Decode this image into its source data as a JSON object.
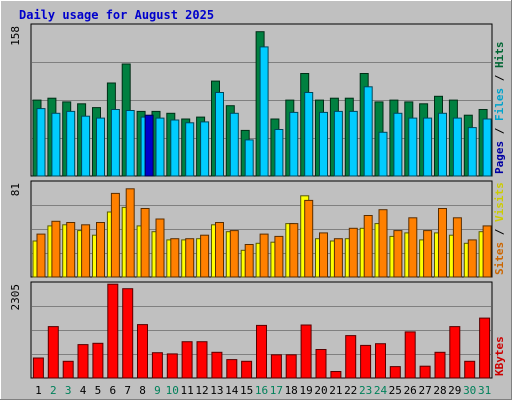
{
  "chart_data": [
    {
      "type": "bar",
      "title": "Daily usage for August 2025",
      "panel": "hits-files-pages",
      "ymax_label": "158",
      "legend": [
        {
          "name": "Pages",
          "color": "#0000CC"
        },
        {
          "name": "Files",
          "color": "#00CCFF"
        },
        {
          "name": "Hits",
          "color": "#008040"
        }
      ],
      "categories": [
        "1",
        "2",
        "3",
        "4",
        "5",
        "6",
        "7",
        "8",
        "9",
        "10",
        "11",
        "12",
        "13",
        "14",
        "15",
        "16",
        "17",
        "18",
        "19",
        "20",
        "21",
        "22",
        "23",
        "24",
        "25",
        "26",
        "27",
        "28",
        "29",
        "30",
        "31"
      ],
      "weekend_days": [
        "2",
        "3",
        "9",
        "10",
        "16",
        "17",
        "23",
        "24",
        "30",
        "31"
      ],
      "series": [
        {
          "name": "Hits",
          "values": [
            80,
            82,
            78,
            76,
            72,
            98,
            118,
            68,
            68,
            66,
            60,
            62,
            100,
            74,
            48,
            152,
            60,
            80,
            108,
            80,
            82,
            82,
            108,
            78,
            80,
            78,
            76,
            84,
            80,
            64,
            70
          ]
        },
        {
          "name": "Files",
          "values": [
            71,
            66,
            68,
            63,
            61,
            70,
            69,
            62,
            61,
            59,
            56,
            57,
            88,
            66,
            38,
            136,
            49,
            67,
            88,
            67,
            68,
            68,
            94,
            46,
            66,
            61,
            61,
            66,
            61,
            51,
            60
          ]
        },
        {
          "name": "Pages",
          "values": [
            0,
            0,
            0,
            0,
            0,
            0,
            0,
            64,
            0,
            0,
            0,
            0,
            0,
            0,
            0,
            0,
            0,
            0,
            0,
            0,
            0,
            0,
            0,
            0,
            0,
            0,
            0,
            0,
            0,
            0,
            0
          ]
        }
      ],
      "ylim": [
        0,
        158
      ]
    },
    {
      "type": "bar",
      "panel": "visits-sites",
      "ymax_label": "81",
      "legend": [
        {
          "name": "Sites",
          "color": "#FF8000"
        },
        {
          "name": "Visits",
          "color": "#FFFF00"
        }
      ],
      "categories": [
        "1",
        "2",
        "3",
        "4",
        "5",
        "6",
        "7",
        "8",
        "9",
        "10",
        "11",
        "12",
        "13",
        "14",
        "15",
        "16",
        "17",
        "18",
        "19",
        "20",
        "21",
        "22",
        "23",
        "24",
        "25",
        "26",
        "27",
        "28",
        "29",
        "30",
        "31"
      ],
      "series": [
        {
          "name": "Visits",
          "values": [
            31,
            44,
            45,
            40,
            36,
            56,
            60,
            44,
            39,
            32,
            32,
            33,
            45,
            39,
            23,
            29,
            30,
            46,
            70,
            33,
            31,
            33,
            42,
            46,
            35,
            38,
            32,
            38,
            36,
            29,
            39
          ]
        },
        {
          "name": "Sites",
          "values": [
            37,
            48,
            47,
            45,
            47,
            72,
            76,
            59,
            50,
            33,
            33,
            36,
            47,
            40,
            28,
            37,
            35,
            46,
            66,
            38,
            33,
            42,
            53,
            58,
            40,
            51,
            40,
            59,
            51,
            32,
            44
          ]
        }
      ],
      "ylim": [
        0,
        81
      ]
    },
    {
      "type": "bar",
      "panel": "kbytes",
      "ymax_label": "2305",
      "legend": [
        {
          "name": "KBytes",
          "color": "#FF0000"
        }
      ],
      "categories": [
        "1",
        "2",
        "3",
        "4",
        "5",
        "6",
        "7",
        "8",
        "9",
        "10",
        "11",
        "12",
        "13",
        "14",
        "15",
        "16",
        "17",
        "18",
        "19",
        "20",
        "21",
        "22",
        "23",
        "24",
        "25",
        "26",
        "27",
        "28",
        "29",
        "30",
        "31"
      ],
      "series": [
        {
          "name": "KBytes",
          "values": [
            490,
            1260,
            410,
            820,
            850,
            2300,
            2190,
            1310,
            620,
            590,
            890,
            890,
            630,
            450,
            410,
            1290,
            570,
            570,
            1300,
            700,
            160,
            1040,
            800,
            840,
            280,
            1130,
            290,
            630,
            1260,
            410,
            1470
          ]
        }
      ],
      "ylim": [
        0,
        2305
      ]
    }
  ]
}
